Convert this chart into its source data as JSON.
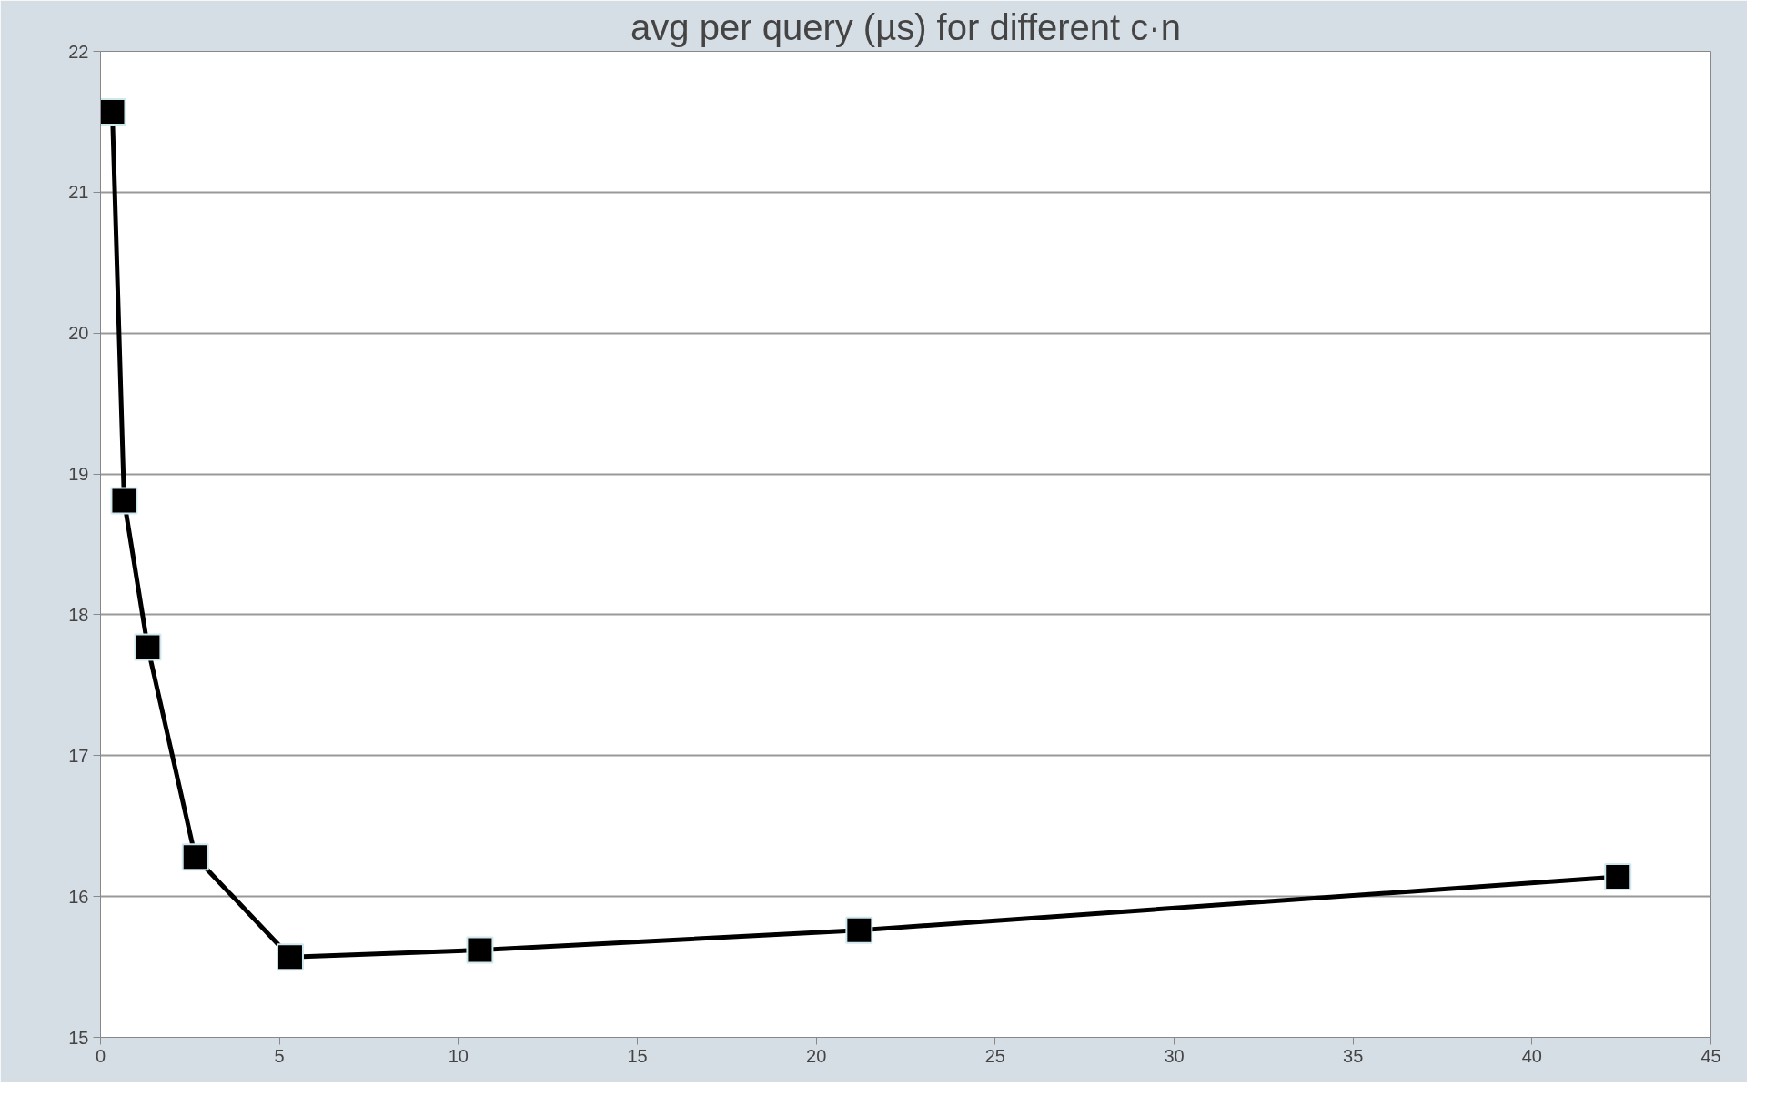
{
  "chart_data": {
    "type": "line",
    "title": "avg per query (µs) for different c·n",
    "x": [
      0.33,
      0.66,
      1.32,
      2.65,
      5.3,
      10.6,
      21.2,
      42.4
    ],
    "series": [
      {
        "color": "#000000",
        "values": [
          21.57,
          18.81,
          17.77,
          16.28,
          15.57,
          15.62,
          15.76,
          16.14
        ]
      }
    ],
    "xlim": [
      0,
      45
    ],
    "xticks": [
      0,
      5,
      10,
      15,
      20,
      25,
      30,
      35,
      40,
      45
    ],
    "ylim": [
      15,
      22
    ],
    "yticks": [
      15,
      16,
      17,
      18,
      19,
      20,
      21,
      22
    ],
    "grid": "y",
    "marker": "square",
    "line_style": "solid"
  }
}
